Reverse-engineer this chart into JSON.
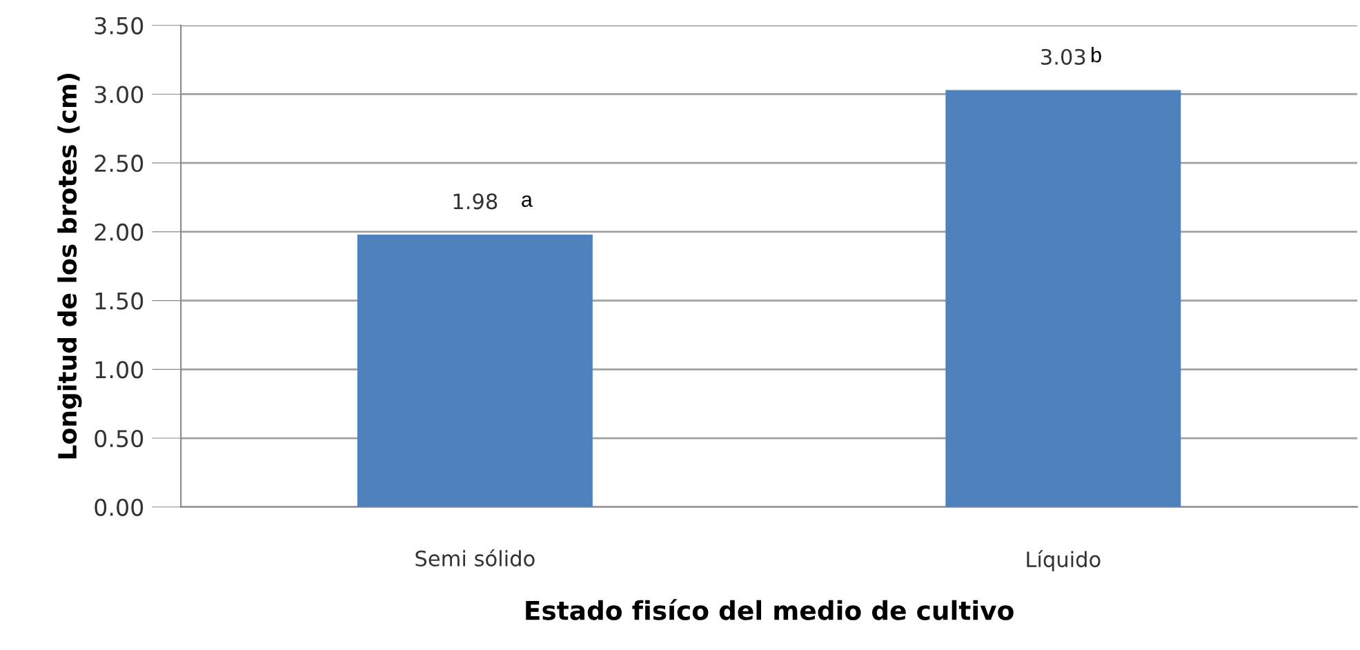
{
  "chart_data": {
    "type": "bar",
    "xlabel": "Estado fisíco del medio de cultivo",
    "ylabel": "Longitud de los brotes (cm)",
    "categories": [
      "Semi sólido",
      "Líquido"
    ],
    "values": [
      1.98,
      3.03
    ],
    "color": "#4f81bd",
    "value_labels": [
      "1.98",
      "3.03"
    ],
    "annotations": [
      "a",
      "b"
    ],
    "ylim": [
      0,
      3.5
    ],
    "yticks": [
      {
        "value": 0,
        "label": "0.00"
      },
      {
        "value": 0.5,
        "label": "0.50"
      },
      {
        "value": 1,
        "label": "1.00"
      },
      {
        "value": 1.5,
        "label": "1.50"
      },
      {
        "value": 2,
        "label": "2.00"
      },
      {
        "value": 2.5,
        "label": "2.50"
      },
      {
        "value": 3,
        "label": "3.00"
      },
      {
        "value": 3.5,
        "label": "3.50"
      }
    ],
    "grid": "y"
  }
}
